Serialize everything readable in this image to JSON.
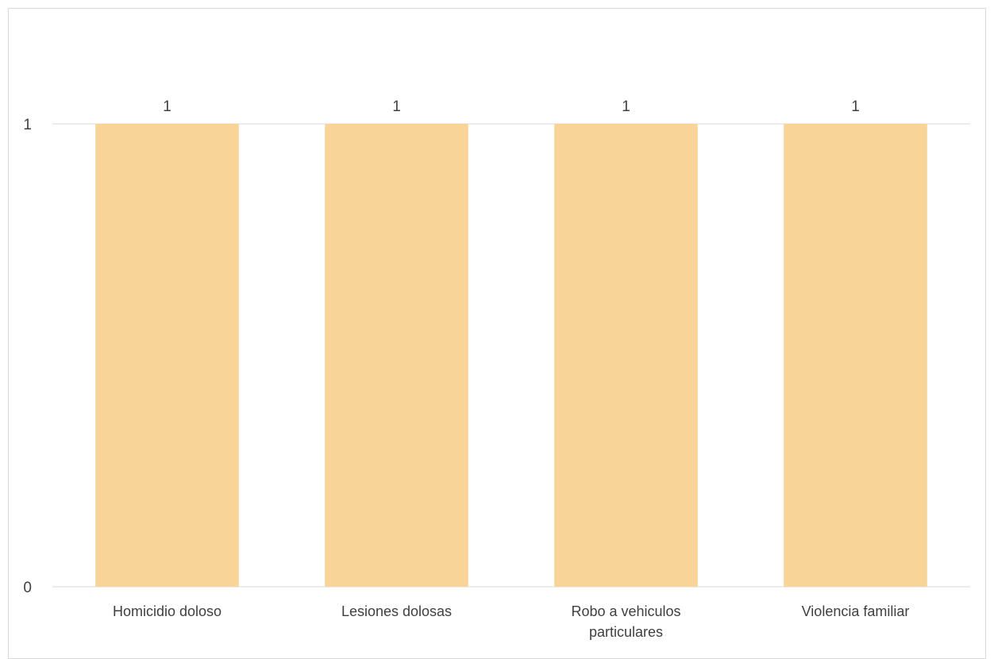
{
  "chart_data": {
    "type": "bar",
    "title": "",
    "xlabel": "",
    "ylabel": "",
    "categories": [
      "Homicidio doloso",
      "Lesiones dolosas",
      "Robo a vehiculos particulares",
      "Violencia familiar"
    ],
    "category_lines": [
      [
        "Homicidio doloso"
      ],
      [
        "Lesiones dolosas"
      ],
      [
        "Robo a vehiculos",
        "particulares"
      ],
      [
        "Violencia familiar"
      ]
    ],
    "values": [
      1,
      1,
      1,
      1
    ],
    "data_labels": [
      "1",
      "1",
      "1",
      "1"
    ],
    "ylim": [
      0,
      1
    ],
    "yticks": [
      0,
      1
    ],
    "grid": true,
    "legend": "none",
    "bar_color": "#f8d498",
    "grid_color": "#d9d9d9",
    "text_color": "#404040"
  }
}
